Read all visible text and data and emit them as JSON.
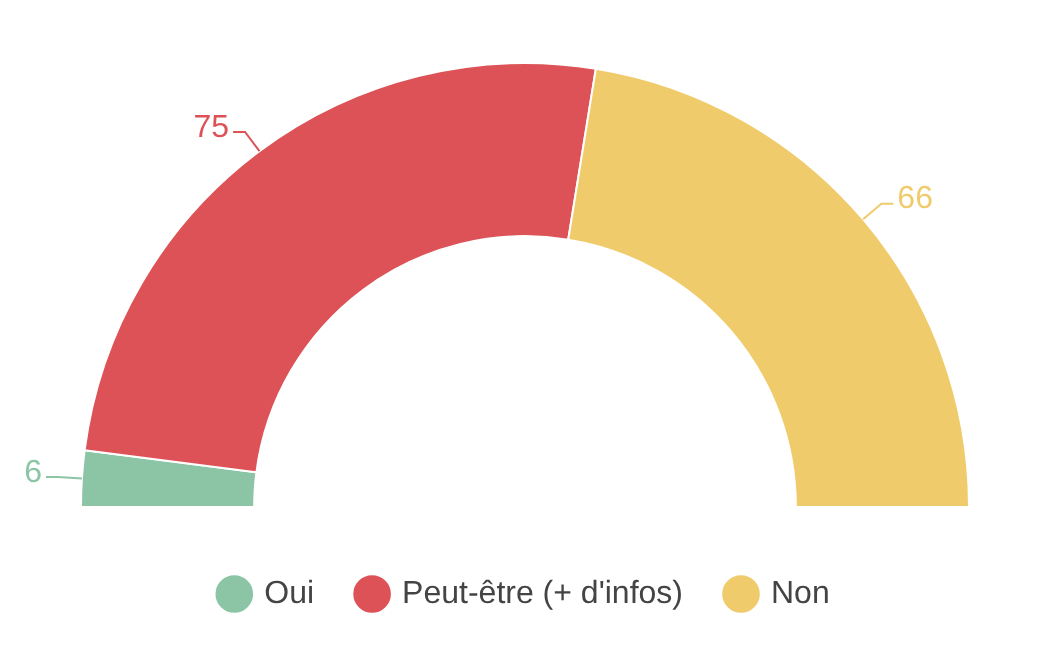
{
  "chart_data": {
    "type": "donut",
    "categories": [
      "Oui",
      "Peut-être (+ d'infos)",
      "Non"
    ],
    "values": [
      6,
      75,
      66
    ],
    "colors": [
      "#8cc5a5",
      "#dc5257",
      "#f0cb6b"
    ],
    "data_labels": true,
    "legend": "bottom"
  }
}
